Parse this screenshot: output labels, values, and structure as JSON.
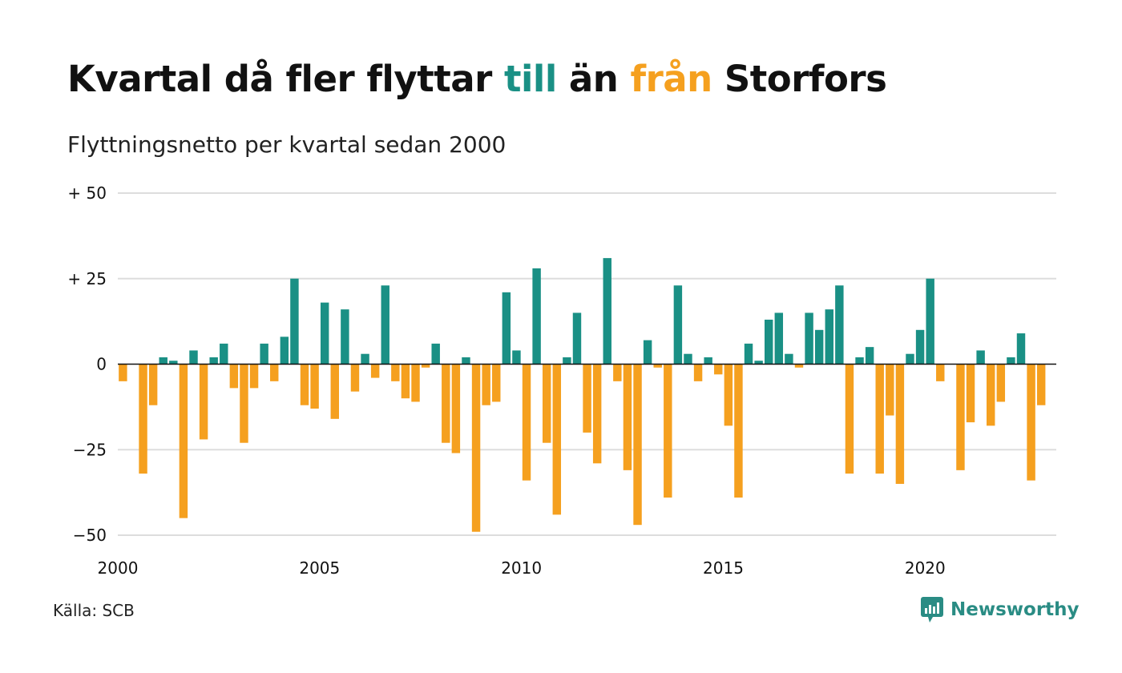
{
  "title": {
    "part1": "Kvartal då fler flyttar ",
    "part2": "till",
    "part3": " än ",
    "part4": "från",
    "part5": " Storfors"
  },
  "subtitle": "Flyttningsnetto per kvartal sedan 2000",
  "source": "Källa: SCB",
  "brand": {
    "name": "Newsworthy",
    "icon": "newsworthy-logo-icon"
  },
  "colors": {
    "positive": "#1a9085",
    "negative": "#f5a01f",
    "grid": "#dddddd",
    "zero": "#111111"
  },
  "chart_data": {
    "type": "bar",
    "title": "Kvartal då fler flyttar till än från Storfors",
    "subtitle": "Flyttningsnetto per kvartal sedan 2000",
    "x_ticks": [
      2000,
      2005,
      2010,
      2015,
      2020
    ],
    "y_ticks": [
      {
        "value": 50,
        "label": "+ 50"
      },
      {
        "value": 25,
        "label": "+ 25"
      },
      {
        "value": 0,
        "label": "0"
      },
      {
        "value": -25,
        "label": "−25"
      },
      {
        "value": -50,
        "label": "−50"
      }
    ],
    "ylim": [
      -50,
      50
    ],
    "xlim": [
      2000,
      2023.25
    ],
    "grid": true,
    "start_year": 2000,
    "values": [
      -5,
      0,
      -32,
      -12,
      2,
      1,
      -45,
      4,
      -22,
      2,
      6,
      -7,
      -23,
      -7,
      6,
      -5,
      8,
      25,
      -12,
      -13,
      18,
      -16,
      16,
      -8,
      3,
      -4,
      23,
      -5,
      -10,
      -11,
      -1,
      6,
      -23,
      -26,
      2,
      -49,
      -12,
      -11,
      21,
      4,
      -34,
      28,
      -23,
      -44,
      2,
      15,
      -20,
      -29,
      31,
      -5,
      -31,
      -47,
      7,
      -1,
      -39,
      23,
      3,
      -5,
      2,
      -3,
      -18,
      -39,
      6,
      1,
      13,
      15,
      3,
      -1,
      15,
      10,
      16,
      23,
      -32,
      2,
      5,
      -32,
      -15,
      -35,
      3,
      10,
      25,
      -5,
      0,
      -31,
      -17,
      4,
      -18,
      -11,
      2,
      9,
      -34,
      -12
    ]
  }
}
